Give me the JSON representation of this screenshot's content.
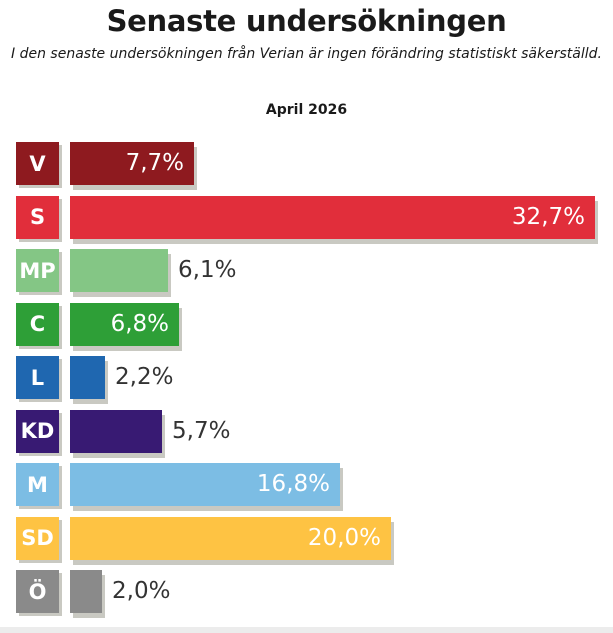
{
  "title": "Senaste undersökningen",
  "subtitle": "I den senaste undersökningen från Verian är ingen förändring statistiskt säkerställd.",
  "period": "April 2026",
  "chart_data": {
    "type": "bar",
    "orientation": "horizontal",
    "title": "Senaste undersökningen",
    "subtitle": "I den senaste undersökningen från Verian är ingen förändring statistiskt säkerställd.",
    "period_label": "April 2026",
    "unit": "%",
    "xlim": [
      0,
      32.7
    ],
    "grid": false,
    "legend": "none",
    "categories": [
      "V",
      "S",
      "MP",
      "C",
      "L",
      "KD",
      "M",
      "SD",
      "Ö"
    ],
    "values": [
      7.7,
      32.7,
      6.1,
      6.8,
      2.2,
      5.7,
      16.8,
      20.0,
      2.0
    ],
    "value_labels": [
      "7,7%",
      "32,7%",
      "6,1%",
      "6,8%",
      "2,2%",
      "5,7%",
      "16,8%",
      "20,0%",
      "2,0%"
    ],
    "previous_values": [
      7.7,
      32.7,
      6.1,
      6.8,
      2.2,
      5.7,
      16.8,
      20.0,
      2.0
    ],
    "colors": [
      "#8e1a1f",
      "#e12e3b",
      "#84c685",
      "#2e9f37",
      "#1f67b0",
      "#381a73",
      "#7cbde4",
      "#fec343",
      "#8a8a8a"
    ],
    "shadow_color": "#c9c9c2"
  }
}
